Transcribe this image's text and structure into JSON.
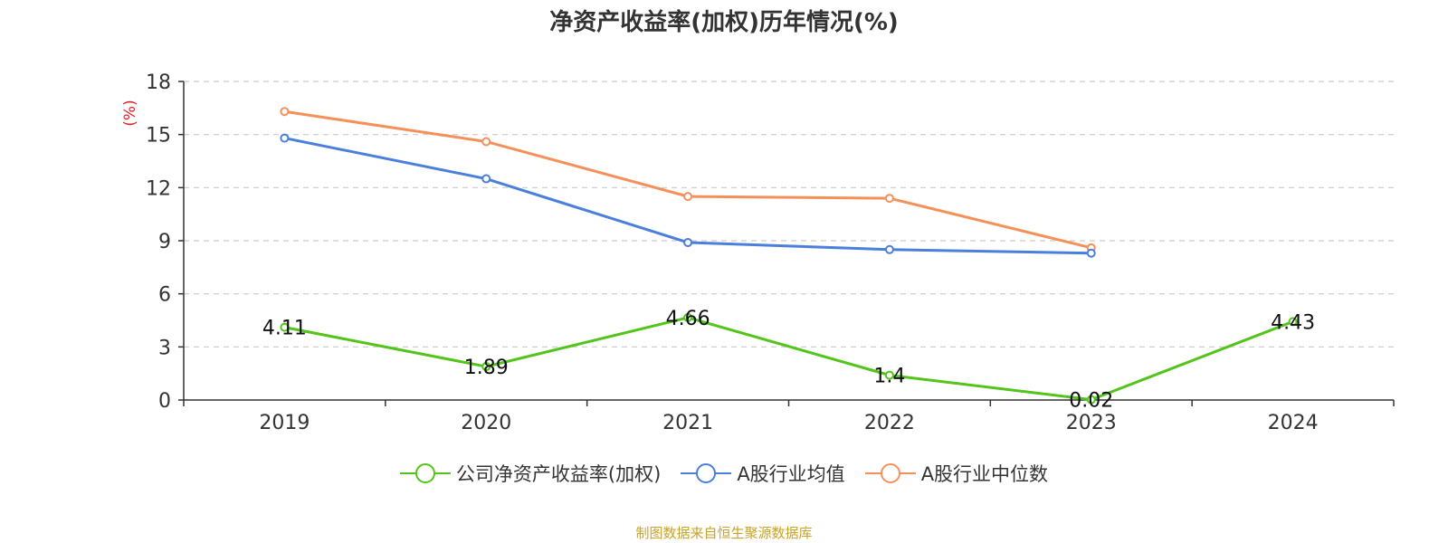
{
  "chart_data": {
    "type": "line",
    "title": "净资产收益率(加权)历年情况(%)",
    "ylabel": "(%)",
    "categories": [
      "2019",
      "2020",
      "2021",
      "2022",
      "2023",
      "2024"
    ],
    "ylim": [
      0,
      18
    ],
    "yticks": [
      0,
      3,
      6,
      9,
      12,
      15,
      18
    ],
    "grid": true,
    "legend_position": "bottom",
    "series": [
      {
        "name": "公司净资产收益率(加权)",
        "color": "#52c41a",
        "values": [
          4.11,
          1.89,
          4.66,
          1.4,
          0.02,
          4.43
        ],
        "data_labels": [
          "4.11",
          "1.89",
          "4.66",
          "1.4",
          "0.02",
          "4.43"
        ]
      },
      {
        "name": "A股行业均值",
        "color": "#4a7fdc",
        "values": [
          14.8,
          12.5,
          8.9,
          8.5,
          8.3,
          null
        ]
      },
      {
        "name": "A股行业中位数",
        "color": "#f5905a",
        "values": [
          16.3,
          14.6,
          11.5,
          11.4,
          8.6,
          null
        ]
      }
    ]
  },
  "source_note": "制图数据来自恒生聚源数据库"
}
